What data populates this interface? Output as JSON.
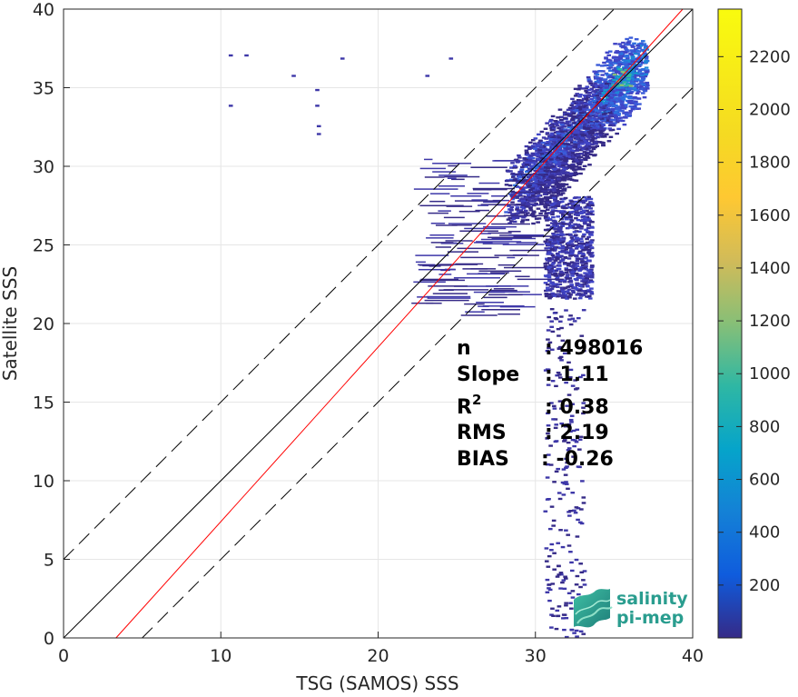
{
  "chart_data": {
    "type": "heatmap",
    "xlabel": "TSG (SAMOS) SSS",
    "ylabel": "Satellite SSS",
    "xlim": [
      0,
      40
    ],
    "ylim": [
      0,
      40
    ],
    "x_ticks": [
      "0",
      "10",
      "20",
      "30",
      "40"
    ],
    "y_ticks": [
      "0",
      "5",
      "10",
      "15",
      "20",
      "25",
      "30",
      "35",
      "40"
    ],
    "grid": true,
    "colorbar": {
      "colormap": "parula",
      "range": [
        0,
        2380
      ],
      "ticks": [
        "200",
        "400",
        "600",
        "800",
        "1000",
        "1200",
        "1400",
        "1600",
        "1800",
        "2000",
        "2200"
      ]
    },
    "reference_lines": [
      {
        "type": "one_to_one",
        "color": "#000000",
        "style": "solid",
        "slope": 1,
        "intercept": 0
      },
      {
        "type": "upper_bound",
        "color": "#000000",
        "style": "dashed",
        "slope": 1,
        "intercept": 5
      },
      {
        "type": "lower_bound",
        "color": "#000000",
        "style": "dashed",
        "slope": 1,
        "intercept": -5
      },
      {
        "type": "regression",
        "color": "#ff0000",
        "style": "solid",
        "slope": 1.11,
        "intercept": -3.7
      }
    ],
    "density_regions": [
      {
        "x": [
          28,
          37
        ],
        "y": [
          27,
          37.5
        ],
        "level": "high",
        "peak_at": [
          35,
          35
        ]
      },
      {
        "x": [
          29.5,
          33.5
        ],
        "y": [
          22,
          27
        ],
        "level": "medium"
      },
      {
        "x": [
          22,
          30
        ],
        "y": [
          20,
          30
        ],
        "level": "low"
      },
      {
        "x": [
          30,
          33
        ],
        "y": [
          0,
          22
        ],
        "level": "sparse"
      }
    ],
    "stats": [
      {
        "label": "n",
        "value": ": 498016"
      },
      {
        "label": "Slope",
        "value": ": 1.11"
      },
      {
        "label": "R",
        "sup": "2",
        "value": ": 0.38"
      },
      {
        "label": "RMS",
        "value": ": 2.19"
      },
      {
        "label": "BIAS",
        "value": ": -0.26"
      }
    ],
    "logo": {
      "line1": "salinity",
      "line2": "pi-mep"
    }
  }
}
